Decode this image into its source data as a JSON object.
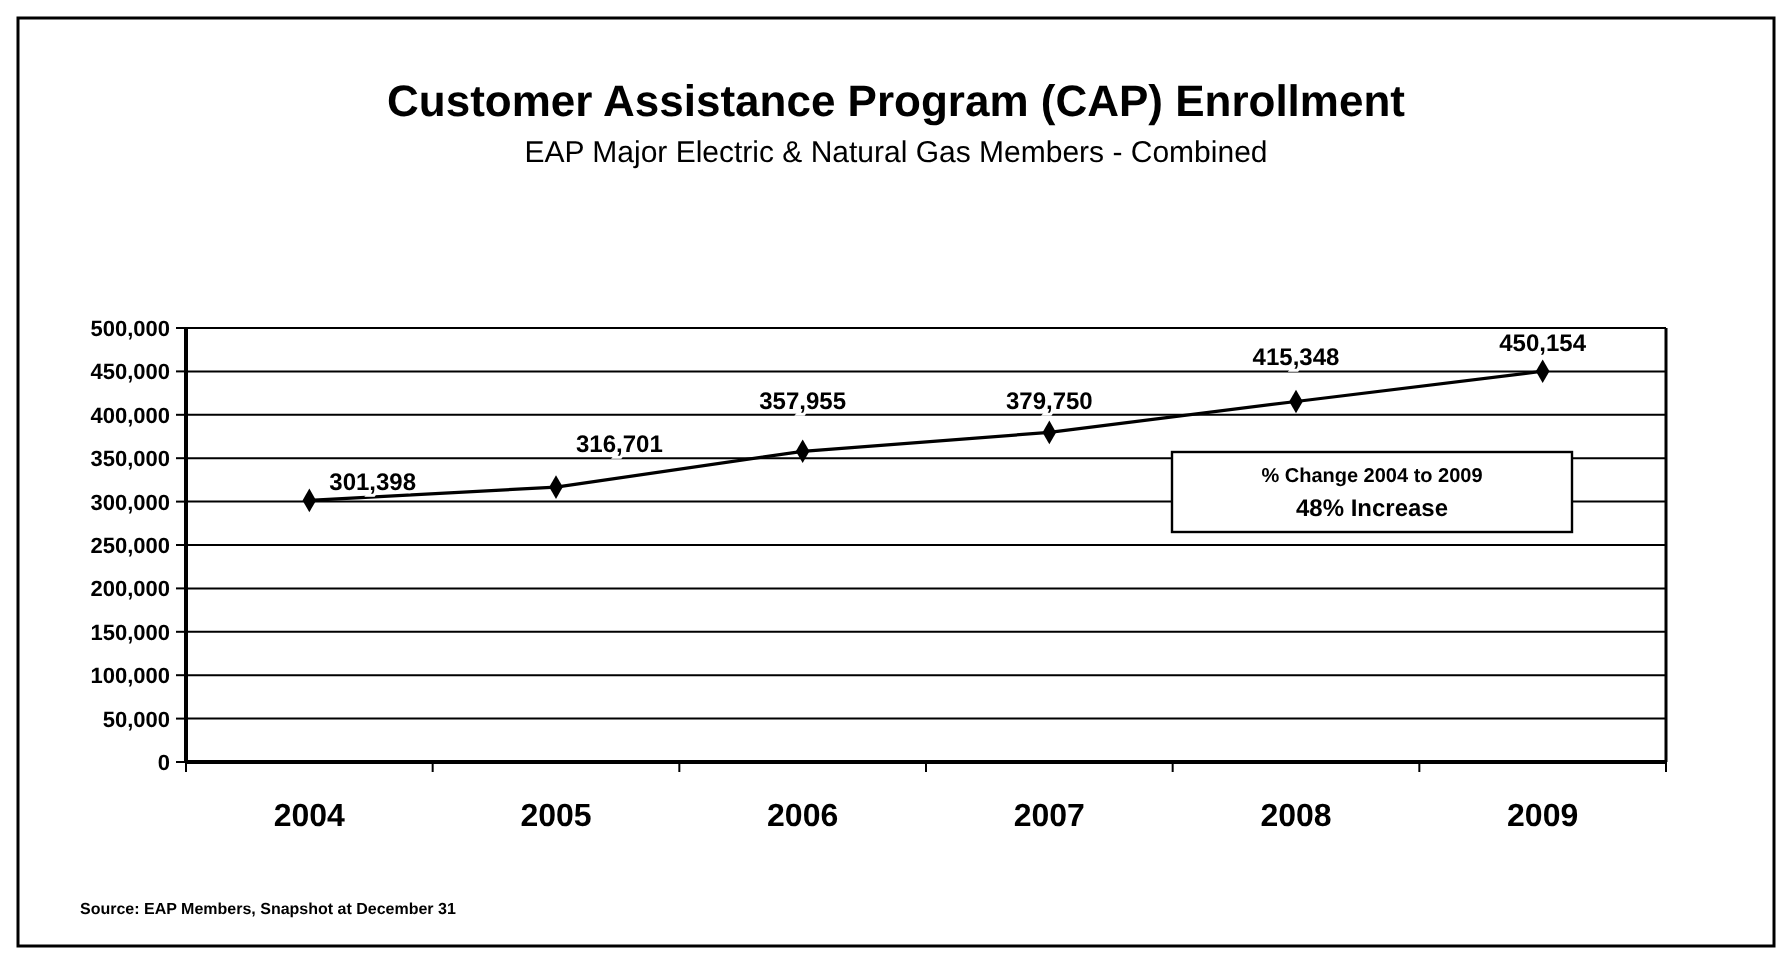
{
  "chart_data": {
    "type": "line",
    "title": "Customer Assistance Program (CAP) Enrollment",
    "subtitle": "EAP Major Electric & Natural Gas Members - Combined",
    "categories": [
      "2004",
      "2005",
      "2006",
      "2007",
      "2008",
      "2009"
    ],
    "series": [
      {
        "color": "#000000",
        "values": [
          301398,
          316701,
          357955,
          379750,
          415348,
          450154
        ]
      }
    ],
    "ylim": [
      0,
      500000
    ],
    "yticks": [
      {
        "value": 0,
        "label": "0"
      },
      {
        "value": 50000,
        "label": "50,000"
      },
      {
        "value": 100000,
        "label": "100,000"
      },
      {
        "value": 150000,
        "label": "150,000"
      },
      {
        "value": 200000,
        "label": "200,000"
      },
      {
        "value": 250000,
        "label": "250,000"
      },
      {
        "value": 300000,
        "label": "300,000"
      },
      {
        "value": 350000,
        "label": "350,000"
      },
      {
        "value": 400000,
        "label": "400,000"
      },
      {
        "value": 450000,
        "label": "450,000"
      },
      {
        "value": 500000,
        "label": "500,000"
      }
    ],
    "value_labels": [
      "301,398",
      "316,701",
      "357,955",
      "379,750",
      "415,348",
      "450,154"
    ],
    "grid": "y",
    "marker": "diamond",
    "line_style": "solid",
    "annotations": [
      "% Change 2004 to 2009",
      "48% Increase",
      "Source: EAP Members, Snapshot at December 31"
    ]
  }
}
